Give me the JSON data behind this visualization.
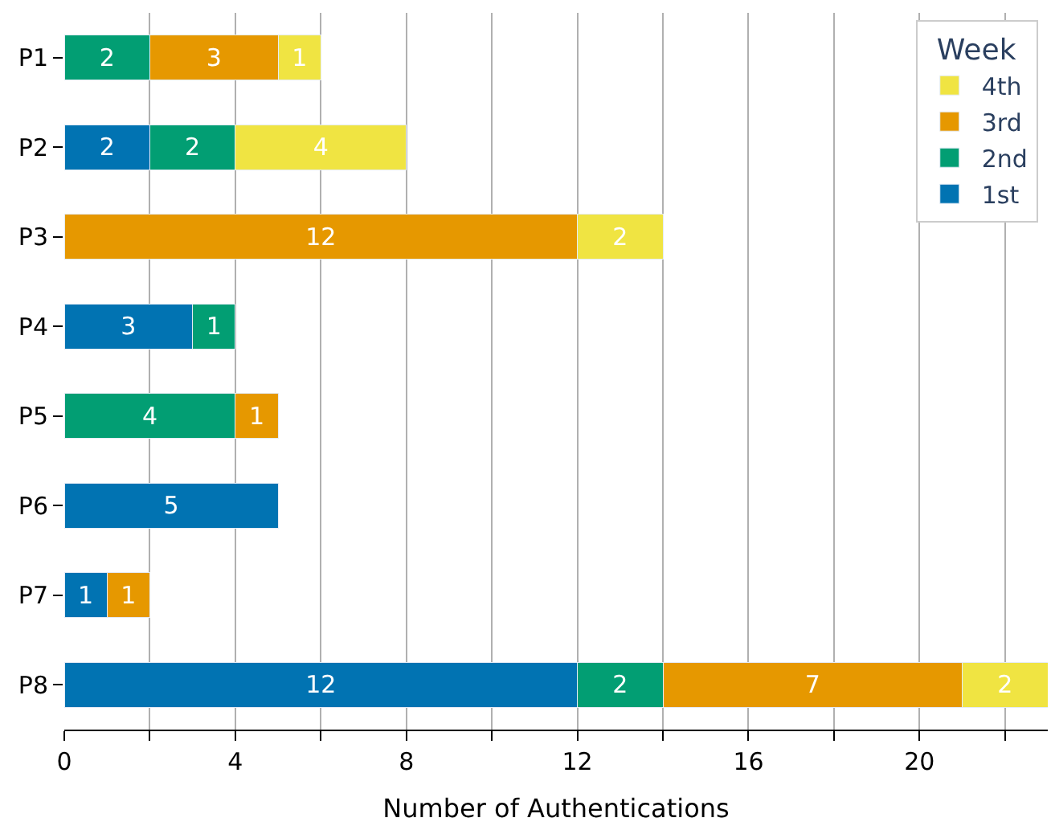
{
  "chart_data": {
    "type": "bar",
    "orientation": "horizontal",
    "stacked": true,
    "data_labels": true,
    "xlabel": "Number of Authentications",
    "legend_title": "Week",
    "legend": "top right",
    "grid": "x",
    "categories": [
      "P1",
      "P2",
      "P3",
      "P4",
      "P5",
      "P6",
      "P7",
      "P8"
    ],
    "series": [
      {
        "name": "1st",
        "color": "#0173b2",
        "values": [
          null,
          2,
          null,
          3,
          null,
          5,
          1,
          12
        ]
      },
      {
        "name": "2nd",
        "color": "#029e73",
        "values": [
          2,
          2,
          null,
          1,
          4,
          null,
          null,
          2
        ]
      },
      {
        "name": "3rd",
        "color": "#e69800",
        "values": [
          3,
          null,
          12,
          null,
          1,
          null,
          1,
          7
        ]
      },
      {
        "name": "4th",
        "color": "#f0e442",
        "values": [
          1,
          4,
          2,
          null,
          null,
          null,
          null,
          2
        ]
      }
    ],
    "xlim": [
      0,
      23
    ],
    "xticks": [
      0,
      {
        "value": 2,
        "label": null
      },
      4,
      {
        "value": 6,
        "label": null
      },
      8,
      {
        "value": 10,
        "label": null
      },
      12,
      {
        "value": 14,
        "label": null
      },
      16,
      {
        "value": 18,
        "label": null
      },
      20,
      {
        "value": 22,
        "label": null
      }
    ]
  }
}
